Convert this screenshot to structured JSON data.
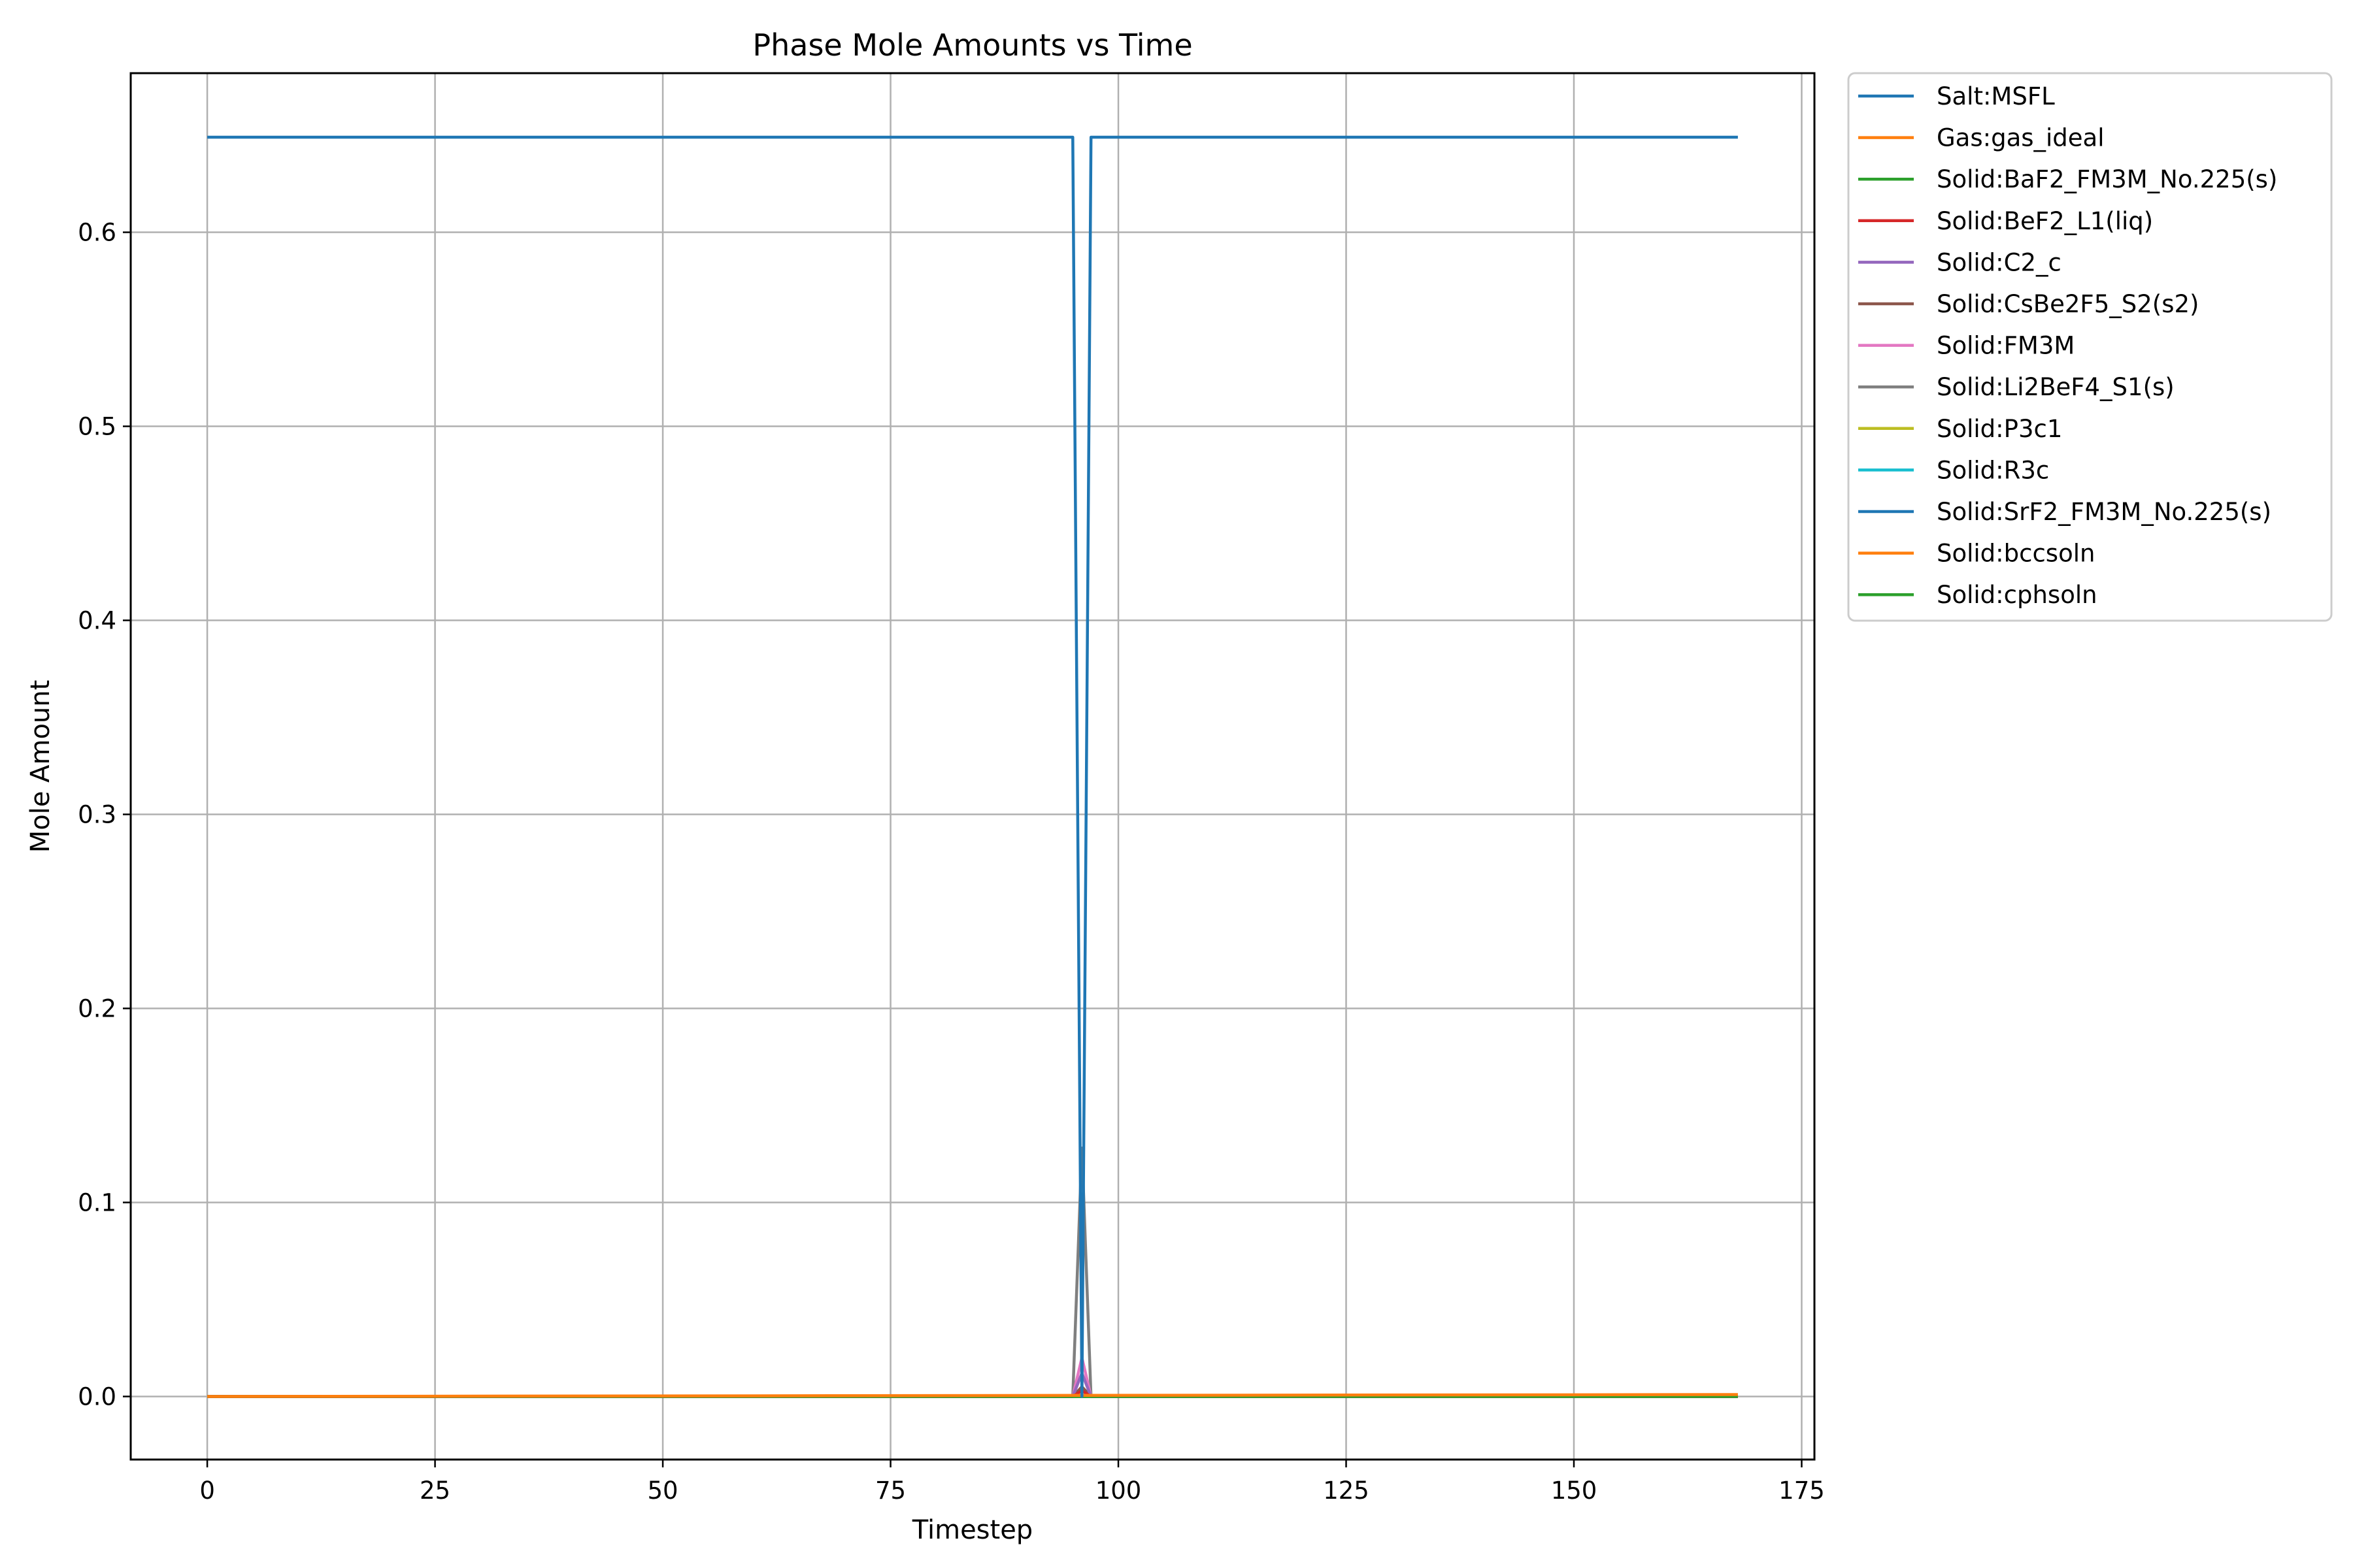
{
  "chart_data": {
    "type": "line",
    "title": "Phase Mole Amounts vs Time",
    "xlabel": "Timestep",
    "ylabel": "Mole Amount",
    "xlim": [
      -8.4,
      176.4
    ],
    "ylim": [
      -0.0325,
      0.682
    ],
    "xticks": [
      0,
      25,
      50,
      75,
      100,
      125,
      150,
      175
    ],
    "yticks": [
      0.0,
      0.1,
      0.2,
      0.3,
      0.4,
      0.5,
      0.6
    ],
    "ytick_labels": [
      "0.0",
      "0.1",
      "0.2",
      "0.3",
      "0.4",
      "0.5",
      "0.6"
    ],
    "grid": true,
    "legend_position": "outside-right-top",
    "series": [
      {
        "name": "Salt:MSFL",
        "color": "#1f77b4",
        "x": [
          0,
          95,
          96,
          97,
          168
        ],
        "y": [
          0.649,
          0.649,
          0.0,
          0.649,
          0.649
        ]
      },
      {
        "name": "Gas:gas_ideal",
        "color": "#ff7f0e",
        "x": [
          0,
          168
        ],
        "y": [
          0.0,
          0.001
        ]
      },
      {
        "name": "Solid:BaF2_FM3M_No.225(s)",
        "color": "#2ca02c",
        "x": [
          0,
          168
        ],
        "y": [
          0.0,
          0.0
        ]
      },
      {
        "name": "Solid:BeF2_L1(liq)",
        "color": "#d62728",
        "x": [
          0,
          95,
          96,
          97,
          168
        ],
        "y": [
          0.0,
          0.0,
          0.003,
          0.0,
          0.0
        ]
      },
      {
        "name": "Solid:C2_c",
        "color": "#9467bd",
        "x": [
          0,
          95,
          96,
          97,
          168
        ],
        "y": [
          0.0,
          0.0,
          0.012,
          0.0,
          0.0
        ]
      },
      {
        "name": "Solid:CsBe2F5_S2(s2)",
        "color": "#8c564b",
        "x": [
          0,
          95,
          96,
          97,
          168
        ],
        "y": [
          0.0,
          0.0,
          0.005,
          0.0,
          0.0
        ]
      },
      {
        "name": "Solid:FM3M",
        "color": "#e377c2",
        "x": [
          0,
          95,
          96,
          97,
          168
        ],
        "y": [
          0.0,
          0.0,
          0.02,
          0.0,
          0.0
        ]
      },
      {
        "name": "Solid:Li2BeF4_S1(s)",
        "color": "#7f7f7f",
        "x": [
          0,
          95,
          96,
          97,
          168
        ],
        "y": [
          0.0,
          0.0,
          0.128,
          0.0,
          0.0
        ]
      },
      {
        "name": "Solid:P3c1",
        "color": "#bcbd22",
        "x": [
          0,
          168
        ],
        "y": [
          0.0,
          0.0
        ]
      },
      {
        "name": "Solid:R3c",
        "color": "#17becf",
        "x": [
          0,
          168
        ],
        "y": [
          0.0,
          0.0
        ]
      },
      {
        "name": "Solid:SrF2_FM3M_No.225(s)",
        "color": "#1f77b4",
        "x": [
          0,
          168
        ],
        "y": [
          0.0,
          0.0
        ]
      },
      {
        "name": "Solid:bccsoln",
        "color": "#ff7f0e",
        "x": [
          0,
          168
        ],
        "y": [
          0.0,
          0.0
        ]
      },
      {
        "name": "Solid:cphsoln",
        "color": "#2ca02c",
        "x": [
          0,
          168
        ],
        "y": [
          0.0,
          0.0
        ]
      }
    ]
  }
}
